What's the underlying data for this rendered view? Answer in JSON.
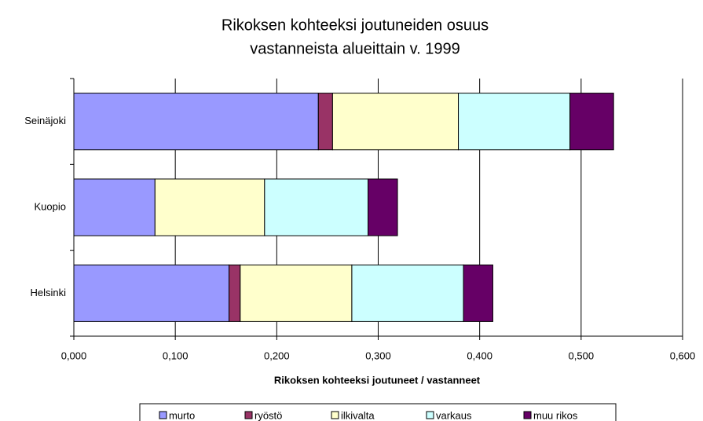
{
  "chart_data": {
    "type": "stacked-barh",
    "title": [
      "Rikoksen kohteeksi joutuneiden osuus",
      "vastanneista alueittain v. 1999"
    ],
    "xlabel": "Rikoksen kohteeksi joutuneet / vastanneet",
    "categories": [
      "Helsinki",
      "Kuopio",
      "Seinäjoki"
    ],
    "series": [
      {
        "name": "murto",
        "color": "#9999ff",
        "values": [
          0.153,
          0.08,
          0.241
        ]
      },
      {
        "name": "ryöstö",
        "color": "#993366",
        "values": [
          0.011,
          0,
          0.014
        ]
      },
      {
        "name": "ilkivalta",
        "color": "#ffffcc",
        "values": [
          0.11,
          0.108,
          0.124
        ]
      },
      {
        "name": "varkaus",
        "color": "#ccffff",
        "values": [
          0.11,
          0.102,
          0.11
        ]
      },
      {
        "name": "muu rikos",
        "color": "#660066",
        "values": [
          0.029,
          0.029,
          0.043
        ]
      }
    ],
    "xlim": [
      0,
      0.6
    ],
    "xticks": [
      {
        "value": 0,
        "label": "0,000"
      },
      {
        "value": 0.1,
        "label": "0,100"
      },
      {
        "value": 0.2,
        "label": "0,200"
      },
      {
        "value": 0.3,
        "label": "0,300"
      },
      {
        "value": 0.4,
        "label": "0,400"
      },
      {
        "value": 0.5,
        "label": "0,500"
      },
      {
        "value": 0.6,
        "label": "0,600"
      }
    ],
    "grid": true,
    "legend": "bottom"
  }
}
